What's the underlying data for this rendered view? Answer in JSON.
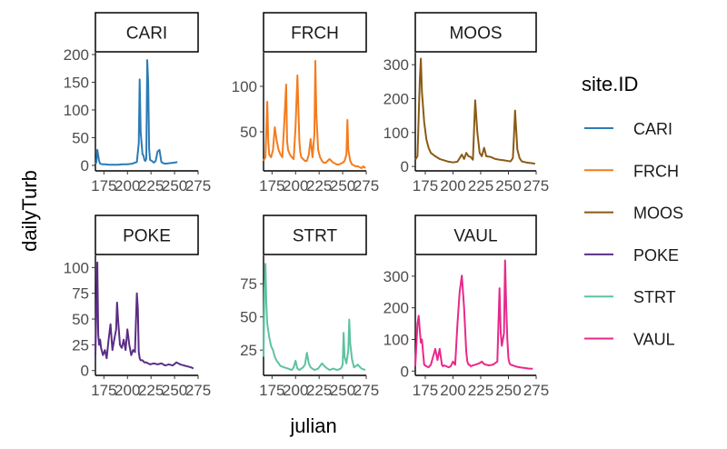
{
  "chart_data": {
    "type": "line",
    "xlabel": "julian",
    "ylabel": "dailyTurb",
    "legend_title": "site.ID",
    "legend_position": "right",
    "grid": false,
    "x_ticks": [
      175,
      200,
      225,
      250,
      275
    ],
    "panels": [
      {
        "name": "CARI",
        "color": "#2C7BB6",
        "ylim": [
          -5,
          200
        ],
        "y_ticks": [
          0,
          50,
          100,
          150,
          200
        ],
        "x": [
          166,
          167,
          168,
          169,
          170,
          171,
          173,
          176,
          180,
          185,
          190,
          195,
          200,
          205,
          210,
          212,
          213,
          214,
          216,
          217,
          218,
          219,
          220,
          221,
          222,
          223,
          224,
          226,
          228,
          230,
          232,
          234,
          236,
          238,
          240,
          245,
          250,
          253
        ],
        "y": [
          3,
          5,
          28,
          18,
          8,
          3,
          2,
          2,
          1,
          1,
          1,
          2,
          2,
          3,
          6,
          40,
          155,
          60,
          20,
          18,
          10,
          8,
          12,
          190,
          150,
          30,
          10,
          8,
          5,
          8,
          25,
          28,
          6,
          4,
          3,
          4,
          5,
          6
        ]
      },
      {
        "name": "FRCH",
        "color": "#F57B1C",
        "ylim": [
          10,
          135
        ],
        "y_ticks": [
          50,
          100
        ],
        "x": [
          166,
          168,
          170,
          171,
          172,
          174,
          176,
          178,
          180,
          182,
          184,
          186,
          188,
          190,
          191,
          192,
          194,
          196,
          198,
          200,
          202,
          204,
          205,
          206,
          208,
          210,
          212,
          214,
          216,
          218,
          220,
          221,
          222,
          224,
          226,
          228,
          230,
          232,
          234,
          236,
          238,
          240,
          242,
          244,
          246,
          248,
          250,
          252,
          254,
          255,
          256,
          258,
          260,
          262,
          264,
          266,
          268,
          270,
          272,
          274
        ],
        "y": [
          18,
          22,
          83,
          40,
          25,
          22,
          30,
          55,
          40,
          30,
          25,
          22,
          60,
          102,
          40,
          30,
          25,
          22,
          20,
          55,
          112,
          40,
          28,
          22,
          20,
          18,
          18,
          25,
          42,
          22,
          48,
          128,
          70,
          30,
          22,
          18,
          16,
          16,
          18,
          20,
          18,
          16,
          15,
          14,
          14,
          15,
          16,
          18,
          25,
          63,
          30,
          18,
          14,
          13,
          12,
          12,
          11,
          10,
          12,
          10
        ]
      },
      {
        "name": "MOOS",
        "color": "#8B5A14",
        "ylim": [
          -5,
          330
        ],
        "y_ticks": [
          0,
          100,
          200,
          300
        ],
        "x": [
          166,
          168,
          170,
          171,
          172,
          174,
          176,
          178,
          180,
          184,
          188,
          192,
          196,
          200,
          204,
          208,
          210,
          212,
          214,
          216,
          218,
          220,
          222,
          224,
          226,
          228,
          230,
          234,
          238,
          242,
          246,
          250,
          252,
          254,
          255,
          256,
          258,
          260,
          262,
          266,
          270,
          274
        ],
        "y": [
          20,
          30,
          250,
          318,
          220,
          130,
          80,
          55,
          40,
          30,
          22,
          18,
          14,
          12,
          14,
          35,
          22,
          40,
          30,
          28,
          20,
          195,
          100,
          40,
          30,
          55,
          30,
          28,
          22,
          20,
          18,
          16,
          15,
          25,
          90,
          165,
          50,
          25,
          15,
          12,
          10,
          8
        ]
      },
      {
        "name": "POKE",
        "color": "#5B2D86",
        "ylim": [
          -2,
          110
        ],
        "y_ticks": [
          0,
          25,
          50,
          75,
          100
        ],
        "x": [
          166,
          167,
          168,
          169,
          170,
          171,
          172,
          174,
          176,
          178,
          180,
          182,
          184,
          186,
          188,
          189,
          190,
          191,
          192,
          194,
          196,
          198,
          200,
          202,
          204,
          206,
          208,
          210,
          211,
          212,
          213,
          214,
          216,
          218,
          220,
          224,
          228,
          232,
          236,
          240,
          244,
          248,
          252,
          256,
          260,
          264,
          268,
          270
        ],
        "y": [
          15,
          60,
          105,
          35,
          25,
          30,
          22,
          15,
          20,
          12,
          30,
          45,
          20,
          30,
          40,
          66,
          50,
          38,
          25,
          22,
          30,
          20,
          40,
          25,
          15,
          20,
          18,
          75,
          60,
          18,
          12,
          10,
          10,
          8,
          8,
          6,
          7,
          6,
          7,
          5,
          6,
          5,
          8,
          6,
          5,
          4,
          3,
          2
        ]
      },
      {
        "name": "STRT",
        "color": "#5EC2A0",
        "ylim": [
          8,
          95
        ],
        "y_ticks": [
          25,
          50,
          75
        ],
        "x": [
          166,
          167,
          168,
          169,
          170,
          172,
          174,
          176,
          178,
          180,
          184,
          188,
          192,
          196,
          198,
          200,
          202,
          204,
          206,
          208,
          210,
          212,
          214,
          216,
          220,
          224,
          228,
          232,
          236,
          240,
          244,
          248,
          250,
          251,
          252,
          254,
          256,
          257,
          258,
          260,
          262,
          266,
          270,
          274
        ],
        "y": [
          20,
          70,
          90,
          60,
          45,
          35,
          28,
          25,
          20,
          17,
          13,
          12,
          11,
          10,
          12,
          17,
          11,
          10,
          11,
          12,
          14,
          23,
          15,
          12,
          10,
          11,
          15,
          12,
          10,
          11,
          10,
          11,
          14,
          38,
          20,
          15,
          25,
          48,
          30,
          18,
          12,
          14,
          11,
          10
        ]
      },
      {
        "name": "VAUL",
        "color": "#E7298A",
        "ylim": [
          -5,
          360
        ],
        "y_ticks": [
          0,
          100,
          200,
          300
        ],
        "x": [
          166,
          168,
          169,
          170,
          171,
          172,
          173,
          174,
          176,
          178,
          180,
          184,
          186,
          188,
          190,
          191,
          192,
          194,
          196,
          198,
          200,
          202,
          204,
          206,
          208,
          210,
          212,
          213,
          214,
          215,
          216,
          218,
          220,
          224,
          226,
          228,
          232,
          236,
          240,
          241,
          242,
          243,
          244,
          246,
          247,
          248,
          249,
          250,
          251,
          252,
          254,
          256,
          260,
          264,
          268,
          272
        ],
        "y": [
          15,
          150,
          175,
          130,
          90,
          100,
          60,
          20,
          15,
          12,
          20,
          70,
          35,
          70,
          20,
          15,
          18,
          15,
          12,
          15,
          30,
          20,
          150,
          250,
          302,
          200,
          60,
          30,
          20,
          20,
          15,
          18,
          20,
          25,
          30,
          22,
          18,
          20,
          30,
          150,
          262,
          120,
          80,
          120,
          350,
          200,
          100,
          40,
          25,
          20,
          18,
          15,
          12,
          10,
          8,
          7
        ]
      }
    ]
  }
}
